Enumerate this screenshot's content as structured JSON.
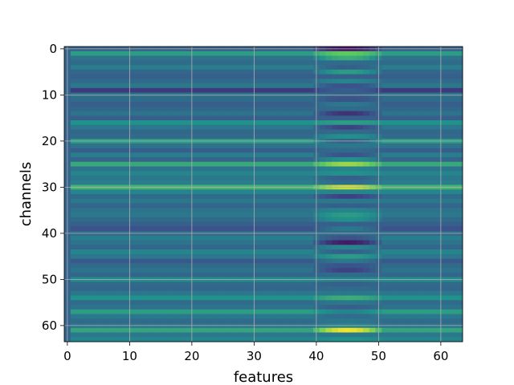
{
  "chart_data": {
    "type": "heatmap",
    "title": "",
    "xlabel": "features",
    "ylabel": "channels",
    "n_cols": 64,
    "n_rows": 64,
    "xlim": [
      -0.5,
      63.5
    ],
    "ylim": [
      63.5,
      -0.5
    ],
    "x_ticks": [
      0,
      10,
      20,
      30,
      40,
      50,
      60
    ],
    "y_ticks": [
      0,
      10,
      20,
      30,
      40,
      50,
      60
    ],
    "grid": true,
    "colormap": "viridis",
    "value_range": [
      0,
      1
    ],
    "background_level": 0.32,
    "row_levels": [
      0.3,
      0.55,
      0.38,
      0.35,
      0.42,
      0.33,
      0.3,
      0.35,
      0.4,
      0.18,
      0.38,
      0.35,
      0.3,
      0.33,
      0.38,
      0.3,
      0.5,
      0.4,
      0.33,
      0.35,
      0.55,
      0.38,
      0.3,
      0.42,
      0.33,
      0.6,
      0.38,
      0.45,
      0.4,
      0.42,
      0.65,
      0.45,
      0.35,
      0.4,
      0.33,
      0.38,
      0.4,
      0.35,
      0.3,
      0.25,
      0.35,
      0.42,
      0.38,
      0.33,
      0.45,
      0.4,
      0.28,
      0.35,
      0.38,
      0.33,
      0.48,
      0.35,
      0.33,
      0.4,
      0.5,
      0.35,
      0.38,
      0.55,
      0.4,
      0.35,
      0.38,
      0.58,
      0.4,
      0.45
    ],
    "feature_band": {
      "col_start": 40,
      "col_end": 50,
      "peak_col": 45,
      "row_values": [
        0.05,
        0.75,
        0.62,
        0.35,
        0.3,
        0.55,
        0.3,
        0.45,
        0.25,
        0.3,
        0.3,
        0.25,
        0.4,
        0.35,
        0.15,
        0.3,
        0.55,
        0.2,
        0.35,
        0.5,
        0.3,
        0.4,
        0.35,
        0.25,
        0.5,
        0.85,
        0.45,
        0.5,
        0.3,
        0.35,
        0.92,
        0.45,
        0.2,
        0.4,
        0.3,
        0.45,
        0.55,
        0.5,
        0.3,
        0.4,
        0.35,
        0.25,
        0.08,
        0.45,
        0.3,
        0.55,
        0.4,
        0.25,
        0.2,
        0.35,
        0.45,
        0.3,
        0.35,
        0.4,
        0.62,
        0.4,
        0.3,
        0.45,
        0.35,
        0.4,
        0.45,
        0.98,
        0.4,
        0.5
      ]
    }
  }
}
